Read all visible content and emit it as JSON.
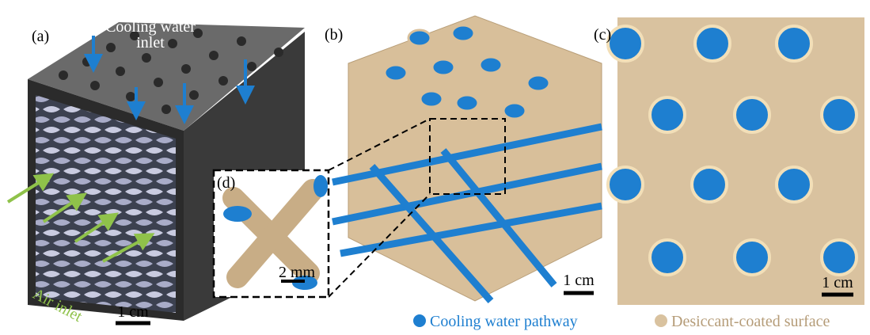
{
  "panels": {
    "a": {
      "label": "(a)",
      "water_label_line1": "Cooling water",
      "water_label_line2": "inlet",
      "air_label": "Air inlet",
      "scale": "1 cm"
    },
    "b": {
      "label": "(b)",
      "scale": "1 cm"
    },
    "c": {
      "label": "(c)",
      "scale": "1 cm"
    },
    "d": {
      "label": "(d)",
      "scale": "2 mm"
    }
  },
  "legend": {
    "items": [
      "Cooling water pathway",
      "Desiccant-coated surface"
    ]
  }
}
